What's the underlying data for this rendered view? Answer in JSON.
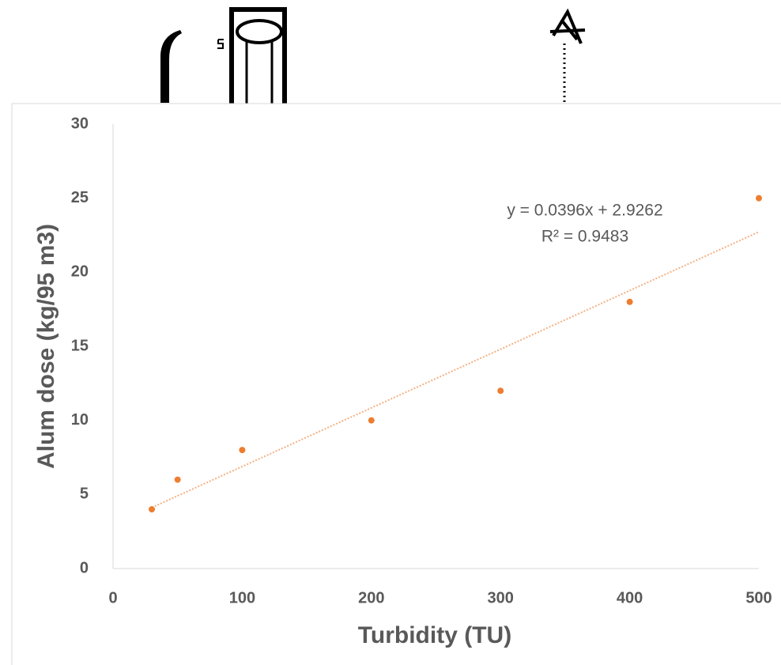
{
  "chart_data": {
    "type": "scatter",
    "xlabel": "Turbidity (TU)",
    "ylabel": "Alum dose (kg/95 m3)",
    "x": [
      30,
      50,
      100,
      200,
      300,
      400,
      500
    ],
    "values": [
      4,
      6,
      8,
      10,
      12,
      18,
      25
    ],
    "color": "#ed7d31",
    "trendline": {
      "slope": 0.0396,
      "intercept": 2.9262,
      "color": "#f4b183"
    },
    "annotations": [
      "y = 0.0396x + 2.9262",
      "R² = 0.9483"
    ],
    "xlim": [
      0,
      500
    ],
    "ylim": [
      0,
      30
    ],
    "xticks": [
      0,
      100,
      200,
      300,
      400,
      500
    ],
    "yticks": [
      0,
      5,
      10,
      15,
      20,
      25,
      30
    ],
    "grid": false
  }
}
